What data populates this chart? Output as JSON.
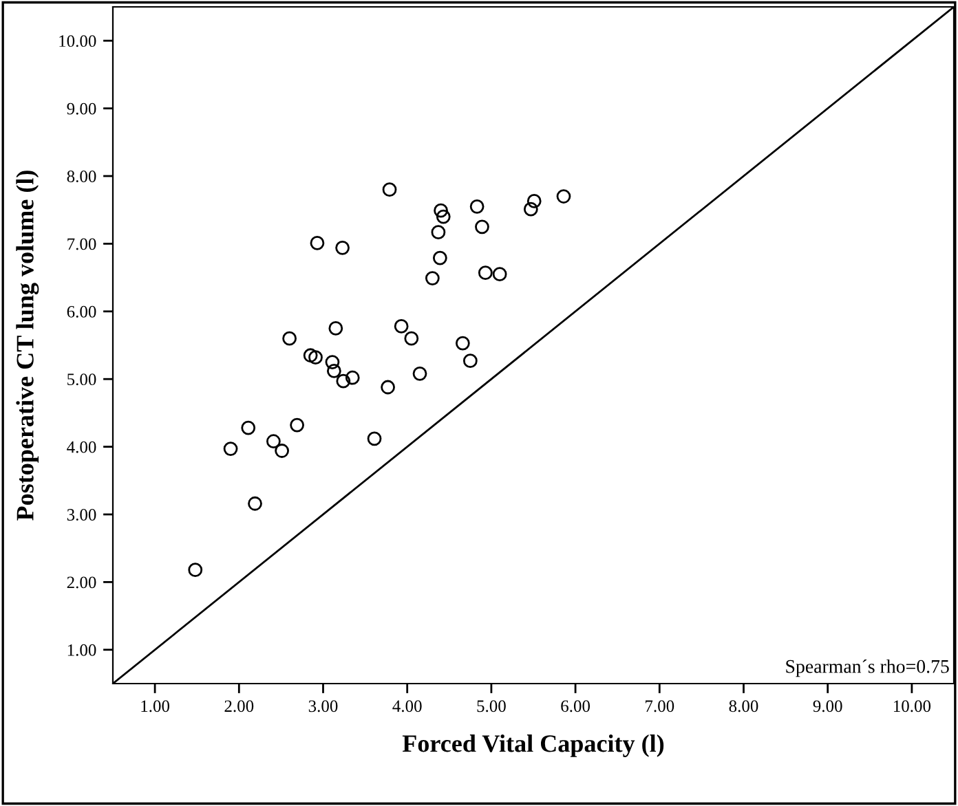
{
  "chart_data": {
    "type": "scatter",
    "xlabel": "Forced Vital Capacity (l)",
    "ylabel": "Postoperative CT lung volume (l)",
    "annotations": [
      "Spearman´s rho=0.75"
    ],
    "xlim": [
      0.5,
      10.5
    ],
    "ylim": [
      0.5,
      10.5
    ],
    "xticks": [
      {
        "value": 1,
        "label": "1.00"
      },
      {
        "value": 2,
        "label": "2.00"
      },
      {
        "value": 3,
        "label": "3.00"
      },
      {
        "value": 4,
        "label": "4.00"
      },
      {
        "value": 5,
        "label": "5.00"
      },
      {
        "value": 6,
        "label": "6.00"
      },
      {
        "value": 7,
        "label": "7.00"
      },
      {
        "value": 8,
        "label": "8.00"
      },
      {
        "value": 9,
        "label": "9.00"
      },
      {
        "value": 10,
        "label": "10.00"
      }
    ],
    "yticks": [
      {
        "value": 1,
        "label": "1.00"
      },
      {
        "value": 2,
        "label": "2.00"
      },
      {
        "value": 3,
        "label": "3.00"
      },
      {
        "value": 4,
        "label": "4.00"
      },
      {
        "value": 5,
        "label": "5.00"
      },
      {
        "value": 6,
        "label": "6.00"
      },
      {
        "value": 7,
        "label": "7.00"
      },
      {
        "value": 8,
        "label": "8.00"
      },
      {
        "value": 9,
        "label": "9.00"
      },
      {
        "value": 10,
        "label": "10.00"
      }
    ],
    "grid": false,
    "series": [
      {
        "marker": "circle",
        "color": "#000000",
        "x": [
          1.48,
          1.9,
          2.11,
          2.19,
          2.41,
          2.51,
          2.69,
          2.6,
          2.85,
          2.91,
          2.93,
          3.23,
          3.15,
          3.11,
          3.13,
          3.24,
          3.35,
          3.61,
          3.77,
          3.79,
          3.93,
          4.05,
          4.15,
          4.3,
          4.39,
          4.37,
          4.4,
          4.43,
          4.66,
          4.75,
          4.83,
          4.89,
          4.93,
          5.1,
          5.47,
          5.51,
          5.86
        ],
        "values": [
          2.18,
          3.97,
          4.28,
          3.16,
          4.08,
          3.94,
          4.32,
          5.6,
          5.35,
          5.32,
          7.01,
          6.94,
          5.75,
          5.25,
          5.12,
          4.97,
          5.02,
          4.12,
          4.88,
          7.8,
          5.78,
          5.6,
          5.08,
          6.49,
          6.79,
          7.17,
          7.49,
          7.4,
          5.53,
          5.27,
          7.55,
          7.25,
          6.57,
          6.55,
          7.51,
          7.63,
          7.7
        ]
      },
      {
        "type": "line",
        "marker": "none",
        "color": "#000000",
        "line_style": "solid",
        "x": [
          0.5,
          10.5
        ],
        "values": [
          0.5,
          10.5
        ]
      }
    ]
  }
}
